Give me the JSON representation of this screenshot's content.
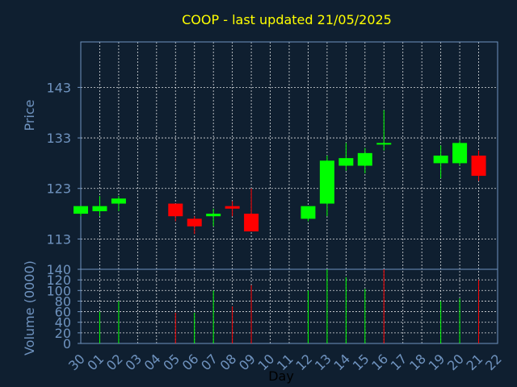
{
  "title": "COOP - last updated 21/05/2025",
  "colors": {
    "background": "#0f1f30",
    "title": "#ffff00",
    "axis_text": "#6f93bf",
    "xlabel_text": "#000000",
    "up": "#00ff00",
    "down": "#ff0000",
    "grid": "#ffffff",
    "frame": "#6f93bf"
  },
  "chart_data": [
    {
      "type": "candlestick",
      "ylabel": "Price",
      "ylim": [
        107,
        152
      ],
      "yticks": [
        113,
        123,
        133,
        143
      ],
      "grid": true,
      "x": [
        "30",
        "01",
        "02",
        "03",
        "04",
        "05",
        "06",
        "07",
        "08",
        "09",
        "10",
        "11",
        "12",
        "13",
        "14",
        "15",
        "16",
        "17",
        "18",
        "19",
        "20",
        "21",
        "22"
      ],
      "candles": [
        {
          "day": "30",
          "open": 118.0,
          "high": 119.5,
          "low": 117.5,
          "close": 119.5
        },
        {
          "day": "01",
          "open": 118.5,
          "high": 121.5,
          "low": 117.5,
          "close": 119.5
        },
        {
          "day": "02",
          "open": 120.0,
          "high": 121.5,
          "low": 118.5,
          "close": 121.0
        },
        {
          "day": "05",
          "open": 120.0,
          "high": 120.0,
          "low": 116.5,
          "close": 117.5
        },
        {
          "day": "06",
          "open": 117.0,
          "high": 117.5,
          "low": 114.0,
          "close": 115.5
        },
        {
          "day": "07",
          "open": 117.5,
          "high": 119.0,
          "low": 115.5,
          "close": 118.0
        },
        {
          "day": "08",
          "open": 119.5,
          "high": 120.5,
          "low": 117.5,
          "close": 119.0
        },
        {
          "day": "09",
          "open": 118.0,
          "high": 123.0,
          "low": 114.5,
          "close": 114.5
        },
        {
          "day": "12",
          "open": 117.0,
          "high": 119.5,
          "low": 116.5,
          "close": 119.5
        },
        {
          "day": "13",
          "open": 120.0,
          "high": 129.5,
          "low": 117.5,
          "close": 128.5
        },
        {
          "day": "14",
          "open": 127.5,
          "high": 132.0,
          "low": 126.5,
          "close": 129.0
        },
        {
          "day": "15",
          "open": 127.5,
          "high": 131.0,
          "low": 126.0,
          "close": 130.0
        },
        {
          "day": "16",
          "open": 132.0,
          "high": 138.5,
          "low": 130.5,
          "close": 132.0
        },
        {
          "day": "19",
          "open": 128.0,
          "high": 131.5,
          "low": 125.0,
          "close": 129.5
        },
        {
          "day": "20",
          "open": 128.0,
          "high": 132.5,
          "low": 127.5,
          "close": 132.0
        },
        {
          "day": "21",
          "open": 129.5,
          "high": 130.5,
          "low": 124.5,
          "close": 125.5
        }
      ]
    },
    {
      "type": "bar",
      "ylabel": "Volume (0000)",
      "xlabel": "Day",
      "ylim": [
        0,
        140
      ],
      "yticks": [
        0,
        20,
        40,
        60,
        80,
        100,
        120,
        140
      ],
      "grid": true,
      "x": [
        "30",
        "01",
        "02",
        "03",
        "04",
        "05",
        "06",
        "07",
        "08",
        "09",
        "10",
        "11",
        "12",
        "13",
        "14",
        "15",
        "16",
        "17",
        "18",
        "19",
        "20",
        "21",
        "22"
      ],
      "values": [
        {
          "day": "01",
          "value": 60,
          "dir": "up"
        },
        {
          "day": "02",
          "value": 80,
          "dir": "up"
        },
        {
          "day": "05",
          "value": 58,
          "dir": "down"
        },
        {
          "day": "06",
          "value": 58,
          "dir": "up"
        },
        {
          "day": "07",
          "value": 100,
          "dir": "up"
        },
        {
          "day": "08",
          "value": 70,
          "dir": "down"
        },
        {
          "day": "09",
          "value": 110,
          "dir": "down"
        },
        {
          "day": "12",
          "value": 100,
          "dir": "up"
        },
        {
          "day": "13",
          "value": 140,
          "dir": "up"
        },
        {
          "day": "14",
          "value": 125,
          "dir": "up"
        },
        {
          "day": "15",
          "value": 103,
          "dir": "up"
        },
        {
          "day": "16",
          "value": 140,
          "dir": "down"
        },
        {
          "day": "19",
          "value": 80,
          "dir": "up"
        },
        {
          "day": "20",
          "value": 85,
          "dir": "up"
        },
        {
          "day": "21",
          "value": 120,
          "dir": "down"
        }
      ]
    }
  ]
}
